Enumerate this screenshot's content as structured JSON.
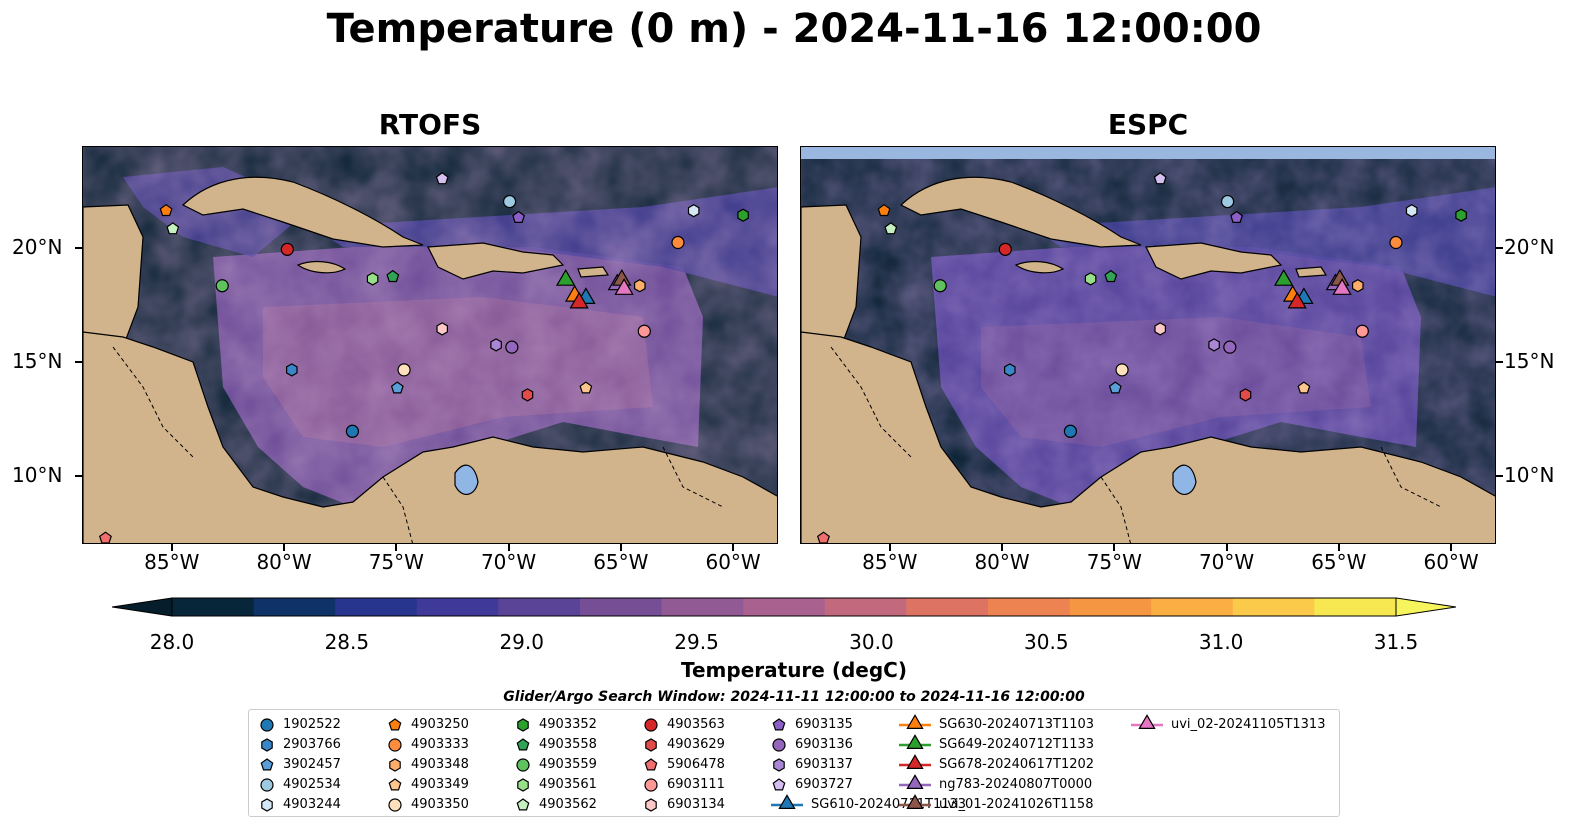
{
  "title": "Temperature (0 m) - 2024-11-16 12:00:00",
  "panels": [
    {
      "id": "rtofs",
      "title": "RTOFS"
    },
    {
      "id": "espc",
      "title": "ESPC"
    }
  ],
  "map_extent": {
    "lon_min": -89,
    "lon_max": -58,
    "lat_min": 7,
    "lat_max": 24.5
  },
  "lon_ticks": [
    {
      "value": -85,
      "label": "85°W"
    },
    {
      "value": -80,
      "label": "80°W"
    },
    {
      "value": -75,
      "label": "75°W"
    },
    {
      "value": -70,
      "label": "70°W"
    },
    {
      "value": -65,
      "label": "65°W"
    },
    {
      "value": -60,
      "label": "60°W"
    }
  ],
  "lat_ticks": [
    {
      "value": 20,
      "label": "20°N"
    },
    {
      "value": 15,
      "label": "15°N"
    },
    {
      "value": 10,
      "label": "10°N"
    }
  ],
  "colorbar": {
    "label": "Temperature (degC)",
    "min": 28.0,
    "max": 31.5,
    "ticks": [
      "28.0",
      "28.5",
      "29.0",
      "29.5",
      "30.0",
      "30.5",
      "31.0",
      "31.5"
    ],
    "colors": [
      "#08263a",
      "#0f3268",
      "#28358f",
      "#3f3a99",
      "#5a4497",
      "#764e96",
      "#925a94",
      "#a96190",
      "#c3697d",
      "#dd7463",
      "#ec8350",
      "#f59643",
      "#fbae44",
      "#fcca4b",
      "#f7e852"
    ],
    "under_color": "#061d2b",
    "over_color": "#f7f55e"
  },
  "legend_title": "Glider/Argo Search Window: 2024-11-11 12:00:00 to 2024-11-16 12:00:00",
  "legend": [
    {
      "label": "1902522",
      "marker": "circle",
      "color": "#1f77b4"
    },
    {
      "label": "2903766",
      "marker": "hexagon",
      "color": "#3a86c8"
    },
    {
      "label": "3902457",
      "marker": "pentagon",
      "color": "#5a9fd8"
    },
    {
      "label": "4902534",
      "marker": "circle",
      "color": "#9ecae1"
    },
    {
      "label": "4903244",
      "marker": "hexagon",
      "color": "#d4e7f5"
    },
    {
      "label": "4903250",
      "marker": "pentagon",
      "color": "#ff7f0e"
    },
    {
      "label": "4903333",
      "marker": "circle",
      "color": "#fd8d3c"
    },
    {
      "label": "4903348",
      "marker": "hexagon",
      "color": "#fdae6b"
    },
    {
      "label": "4903349",
      "marker": "pentagon",
      "color": "#fdc58e"
    },
    {
      "label": "4903350",
      "marker": "circle",
      "color": "#fee0bd"
    },
    {
      "label": "4903352",
      "marker": "hexagon",
      "color": "#2ca02c"
    },
    {
      "label": "4903558",
      "marker": "pentagon",
      "color": "#31a354"
    },
    {
      "label": "4903559",
      "marker": "circle",
      "color": "#5fc25f"
    },
    {
      "label": "4903561",
      "marker": "hexagon",
      "color": "#98df8a"
    },
    {
      "label": "4903562",
      "marker": "pentagon",
      "color": "#c7f0c0"
    },
    {
      "label": "4903563",
      "marker": "circle",
      "color": "#d62728"
    },
    {
      "label": "4903629",
      "marker": "hexagon",
      "color": "#e34a4a"
    },
    {
      "label": "5906478",
      "marker": "pentagon",
      "color": "#f06e6e"
    },
    {
      "label": "6903111",
      "marker": "circle",
      "color": "#ff9896"
    },
    {
      "label": "6903134",
      "marker": "hexagon",
      "color": "#fcc8c8"
    },
    {
      "label": "6903135",
      "marker": "pentagon",
      "color": "#8c5fc7"
    },
    {
      "label": "6903136",
      "marker": "circle",
      "color": "#9467bd"
    },
    {
      "label": "6903137",
      "marker": "hexagon",
      "color": "#a987d4"
    },
    {
      "label": "6903727",
      "marker": "pentagon",
      "color": "#d5bff0"
    },
    {
      "label": "SG610-20240711T1133",
      "marker": "triangle",
      "color": "#1f77b4"
    },
    {
      "label": "SG630-20240713T1103",
      "marker": "triangle",
      "color": "#ff7f0e"
    },
    {
      "label": "SG649-20240712T1133",
      "marker": "triangle",
      "color": "#2ca02c"
    },
    {
      "label": "SG678-20240617T1202",
      "marker": "triangle",
      "color": "#d62728"
    },
    {
      "label": "ng783-20240807T0000",
      "marker": "triangle",
      "color": "#9467bd"
    },
    {
      "label": "uvi_01-20241026T1158",
      "marker": "triangle",
      "color": "#8c564b"
    },
    {
      "label": "uvi_02-20241105T1313",
      "marker": "triangle",
      "color": "#e377c2"
    }
  ],
  "observations": [
    {
      "id": "1902522",
      "lon": -77.0,
      "lat": 12.0
    },
    {
      "id": "2903766",
      "lon": -79.7,
      "lat": 14.7
    },
    {
      "id": "3902457",
      "lon": -75.0,
      "lat": 13.9
    },
    {
      "id": "4902534",
      "lon": -70.0,
      "lat": 22.1
    },
    {
      "id": "4903244",
      "lon": -61.8,
      "lat": 21.7
    },
    {
      "id": "4903250",
      "lon": -85.3,
      "lat": 21.7
    },
    {
      "id": "4903333",
      "lon": -62.5,
      "lat": 20.3
    },
    {
      "id": "4903348",
      "lon": -64.2,
      "lat": 18.4
    },
    {
      "id": "4903349",
      "lon": -66.6,
      "lat": 13.9
    },
    {
      "id": "4903350",
      "lon": -74.7,
      "lat": 14.7
    },
    {
      "id": "4903352",
      "lon": -59.6,
      "lat": 21.5
    },
    {
      "id": "4903558",
      "lon": -75.2,
      "lat": 18.8
    },
    {
      "id": "4903559",
      "lon": -82.8,
      "lat": 18.4
    },
    {
      "id": "4903561",
      "lon": -76.1,
      "lat": 18.7
    },
    {
      "id": "4903562",
      "lon": -85.0,
      "lat": 20.9
    },
    {
      "id": "4903563",
      "lon": -79.9,
      "lat": 20.0
    },
    {
      "id": "4903629",
      "lon": -69.2,
      "lat": 13.6
    },
    {
      "id": "5906478",
      "lon": -88.0,
      "lat": 7.3
    },
    {
      "id": "6903111",
      "lon": -64.0,
      "lat": 16.4
    },
    {
      "id": "6903134",
      "lon": -73.0,
      "lat": 16.5
    },
    {
      "id": "6903135",
      "lon": -69.6,
      "lat": 21.4
    },
    {
      "id": "6903136",
      "lon": -69.9,
      "lat": 15.7
    },
    {
      "id": "6903137",
      "lon": -70.6,
      "lat": 15.8
    },
    {
      "id": "6903727",
      "lon": -73.0,
      "lat": 23.1
    },
    {
      "id": "SG610-20240711T1133",
      "lon": -66.6,
      "lat": 17.8
    },
    {
      "id": "SG630-20240713T1103",
      "lon": -67.1,
      "lat": 17.9
    },
    {
      "id": "SG649-20240712T1133",
      "lon": -67.5,
      "lat": 18.6
    },
    {
      "id": "SG678-20240617T1202",
      "lon": -66.9,
      "lat": 17.6
    },
    {
      "id": "ng783-20240807T0000",
      "lon": -65.2,
      "lat": 18.4
    },
    {
      "id": "uvi_01-20241026T1158",
      "lon": -65.0,
      "lat": 18.6
    },
    {
      "id": "uvi_02-20241105T1313",
      "lon": -64.9,
      "lat": 18.2
    }
  ]
}
